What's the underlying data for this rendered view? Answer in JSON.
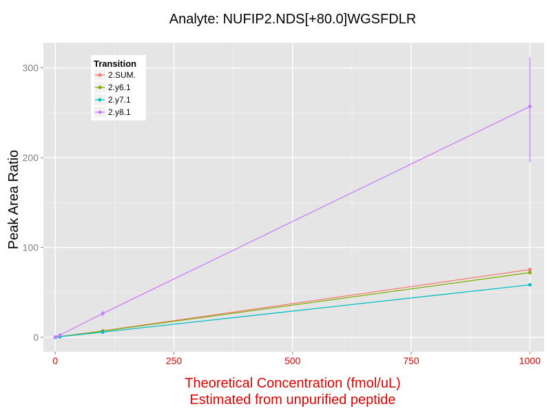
{
  "chart_data": {
    "type": "line",
    "title": "Analyte: NUFIP2.NDS[+80.0]WGSFDLR",
    "xlabel_lines": [
      "Theoretical Concentration (fmol/uL)",
      "Estimated from unpurified peptide"
    ],
    "ylabel": "Peak Area Ratio",
    "xlim": [
      -25,
      1030
    ],
    "ylim": [
      -16,
      328
    ],
    "x_ticks": [
      0,
      250,
      500,
      750,
      1000
    ],
    "x_tick_labels": [
      "0",
      "250",
      "500",
      "750",
      "1000"
    ],
    "y_ticks": [
      0,
      100,
      200,
      300
    ],
    "y_tick_labels": [
      "0",
      "100",
      "200",
      "300"
    ],
    "grid": true,
    "legend": {
      "title": "Transition",
      "position": "top-left"
    },
    "series": [
      {
        "name": "2.SUM.",
        "color": "#F8766D",
        "x": [
          0,
          1,
          10,
          100,
          1000
        ],
        "y": [
          0.1,
          0.3,
          0.9,
          7.2,
          75.5
        ]
      },
      {
        "name": "2.y6.1",
        "color": "#7CAE00",
        "x": [
          0,
          1,
          10,
          100,
          1000
        ],
        "y": [
          0.1,
          0.2,
          0.8,
          7.0,
          72.0
        ]
      },
      {
        "name": "2.y7.1",
        "color": "#00BFC4",
        "x": [
          0,
          1,
          10,
          100,
          1000
        ],
        "y": [
          0.1,
          0.2,
          0.7,
          5.8,
          58.5
        ]
      },
      {
        "name": "2.y8.1",
        "color": "#C77CFF",
        "x": [
          0,
          1,
          10,
          100,
          1000
        ],
        "y": [
          0.2,
          0.5,
          2.5,
          26.5,
          257.0
        ],
        "error_bars": [
          {
            "x": 100,
            "low": 23.5,
            "high": 29.5
          },
          {
            "x": 1000,
            "low": 195,
            "high": 312
          }
        ]
      }
    ]
  },
  "colors": {
    "panel_background": "#e5e5e5",
    "grid_major": "#ffffff",
    "grid_minor": "#f2f2f2",
    "x_axis_title": "#e00000",
    "tick_text": "#7f7f7f"
  }
}
